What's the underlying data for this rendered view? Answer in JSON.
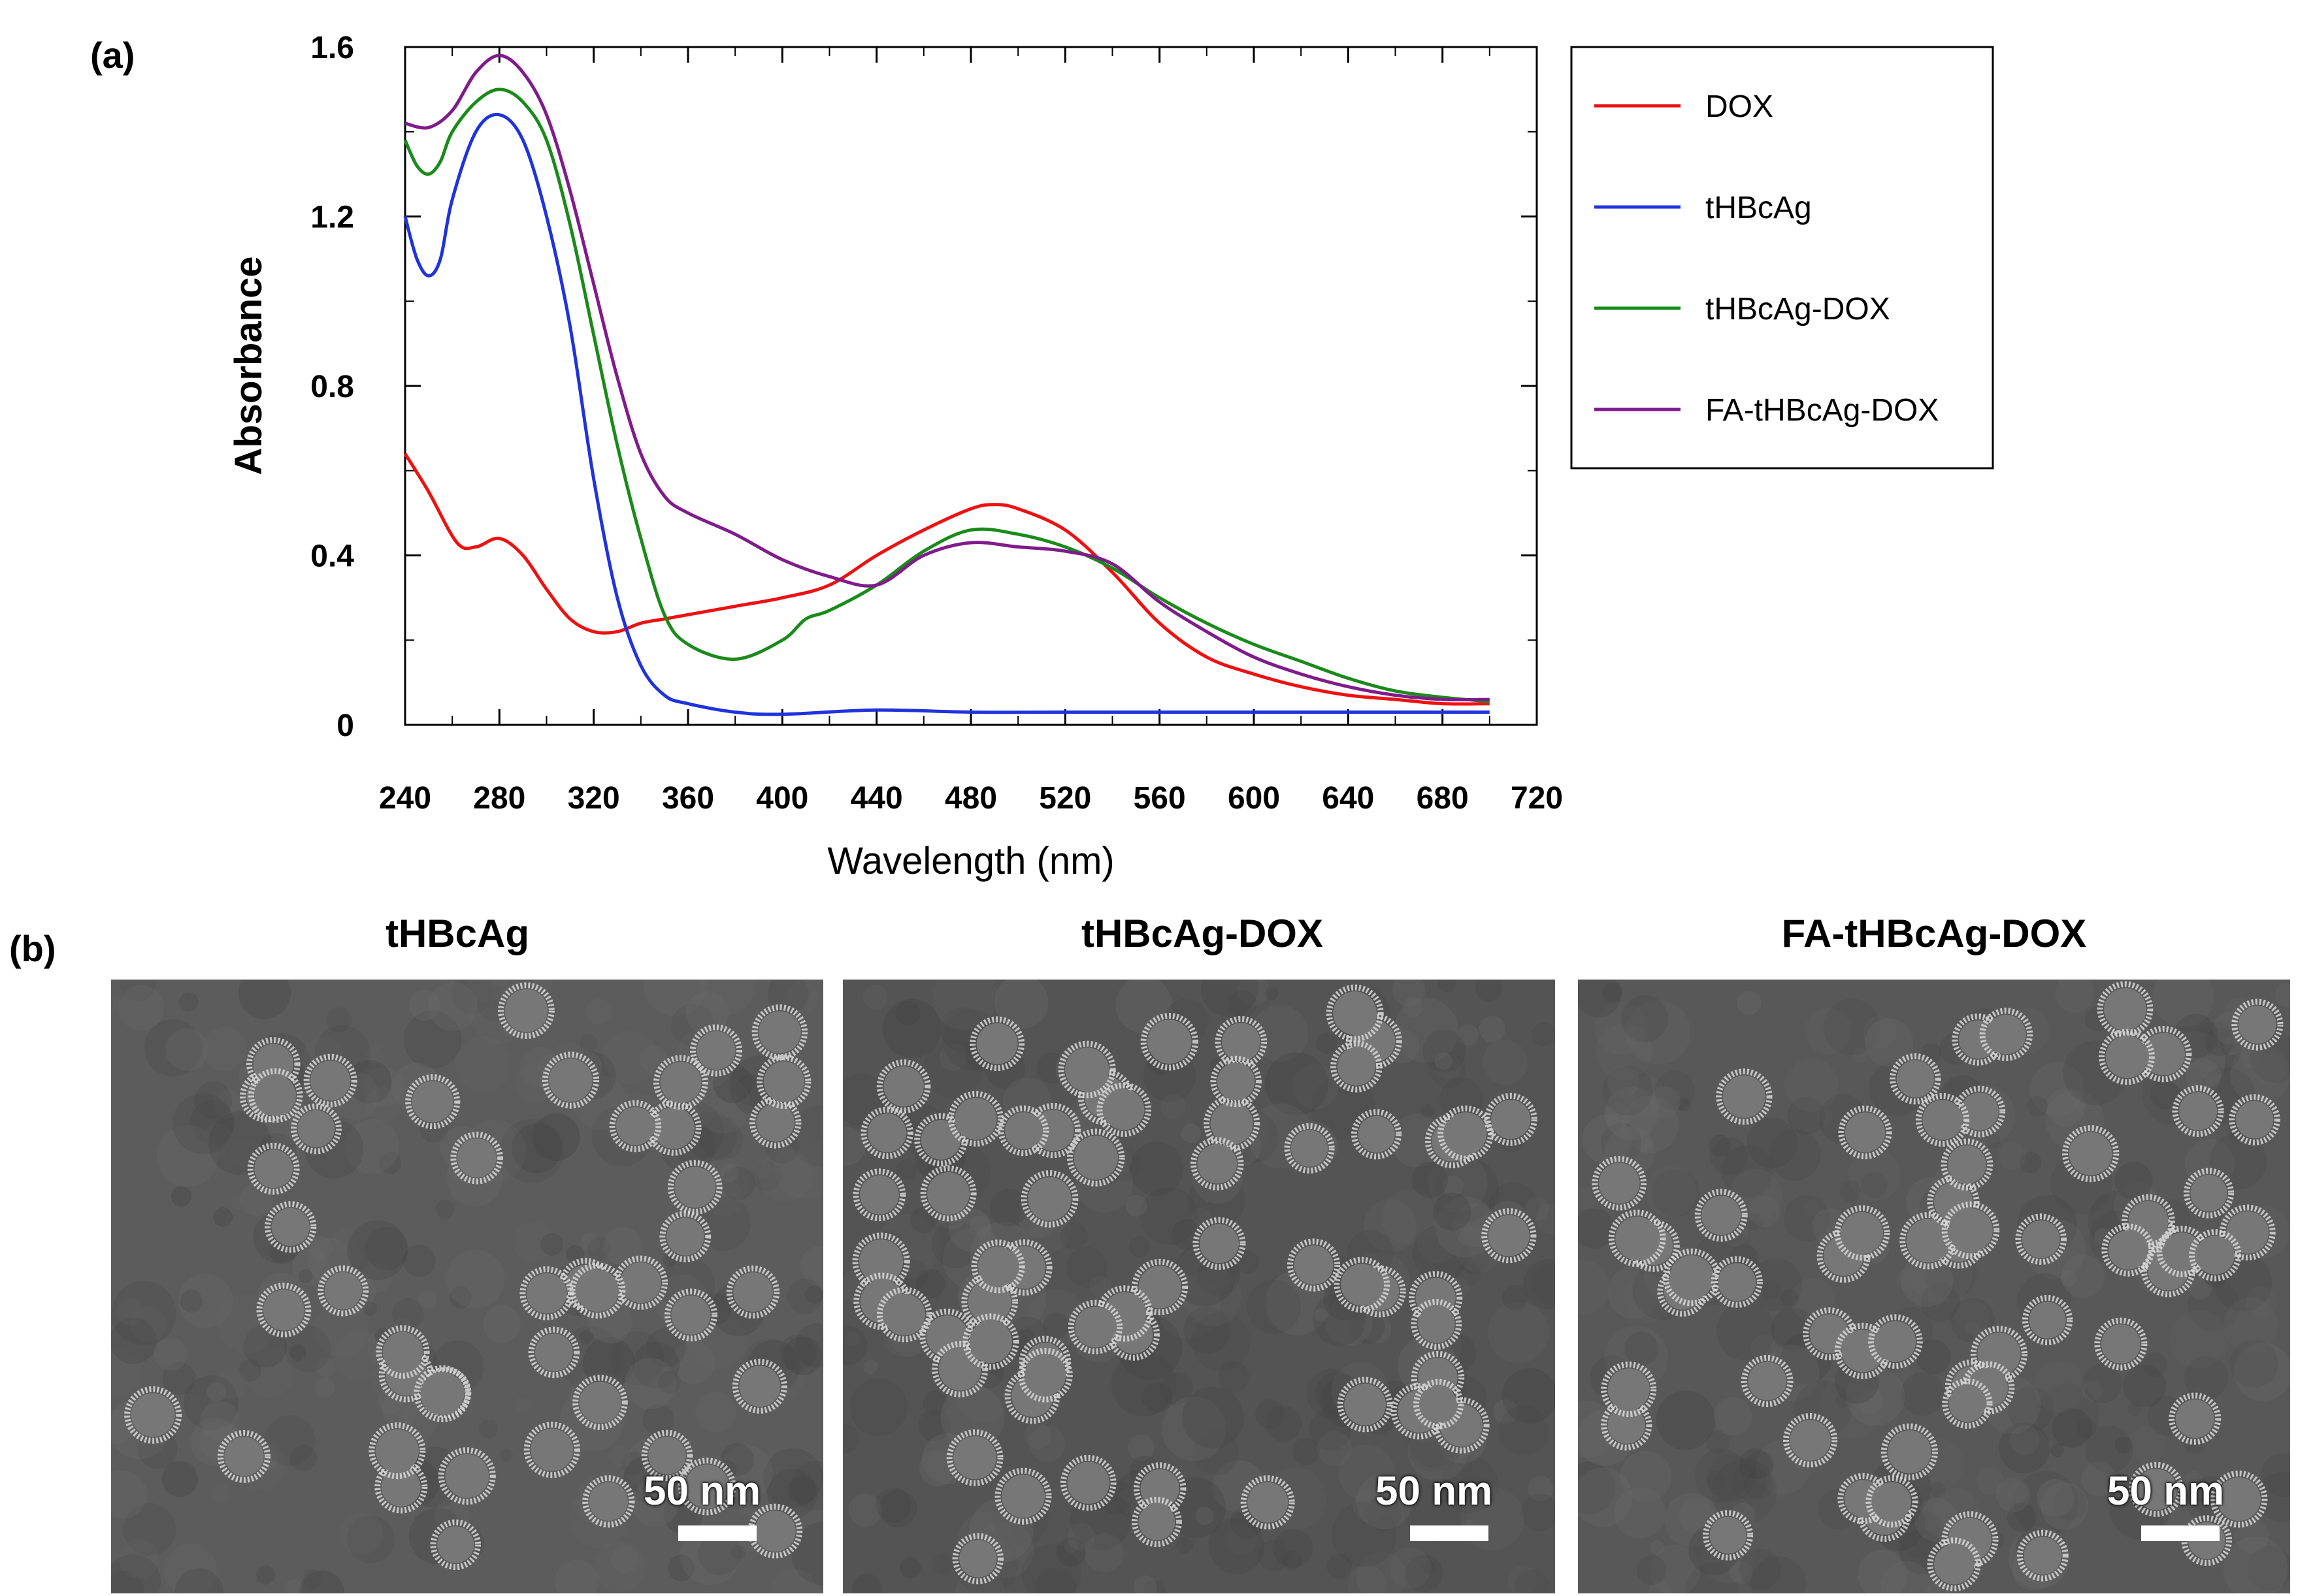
{
  "panel_a_label": "(a)",
  "panel_b_label": "(b)",
  "chart_data": {
    "type": "line",
    "xlabel": "Wavelength (nm)",
    "ylabel": "Absorbance",
    "xlim": [
      240,
      720
    ],
    "ylim": [
      0,
      1.6
    ],
    "xticks": [
      240,
      280,
      320,
      360,
      400,
      440,
      480,
      520,
      560,
      600,
      640,
      680,
      720
    ],
    "yticks": [
      0,
      0.4,
      0.8,
      1.2,
      1.6
    ],
    "ytick_labels": [
      "0",
      "0.4",
      "0.8",
      "1.2",
      "1.6"
    ],
    "legend_position": "outside-right",
    "series": [
      {
        "name": "DOX",
        "color": "#ee1111",
        "x": [
          240,
          250,
          262,
          270,
          280,
          290,
          300,
          310,
          320,
          330,
          340,
          350,
          360,
          380,
          400,
          420,
          440,
          460,
          480,
          490,
          500,
          520,
          540,
          560,
          580,
          600,
          620,
          640,
          660,
          680,
          700
        ],
        "y": [
          0.64,
          0.55,
          0.43,
          0.42,
          0.44,
          0.4,
          0.32,
          0.25,
          0.22,
          0.22,
          0.24,
          0.25,
          0.26,
          0.28,
          0.3,
          0.33,
          0.4,
          0.46,
          0.51,
          0.52,
          0.51,
          0.46,
          0.36,
          0.24,
          0.16,
          0.12,
          0.09,
          0.07,
          0.06,
          0.05,
          0.05
        ]
      },
      {
        "name": "tHBcAg",
        "color": "#1f33dd",
        "x": [
          240,
          245,
          250,
          255,
          260,
          270,
          280,
          290,
          300,
          310,
          320,
          330,
          340,
          350,
          360,
          380,
          400,
          440,
          480,
          520,
          560,
          600,
          640,
          700
        ],
        "y": [
          1.2,
          1.1,
          1.06,
          1.1,
          1.24,
          1.4,
          1.44,
          1.38,
          1.2,
          0.94,
          0.58,
          0.3,
          0.14,
          0.07,
          0.05,
          0.03,
          0.025,
          0.035,
          0.03,
          0.03,
          0.03,
          0.03,
          0.03,
          0.03
        ]
      },
      {
        "name": "tHBcAg-DOX",
        "color": "#1a8a1a",
        "x": [
          240,
          245,
          250,
          255,
          260,
          270,
          280,
          290,
          300,
          310,
          320,
          330,
          340,
          350,
          360,
          380,
          400,
          410,
          420,
          440,
          460,
          480,
          500,
          520,
          540,
          560,
          580,
          600,
          620,
          640,
          660,
          680,
          700
        ],
        "y": [
          1.38,
          1.32,
          1.3,
          1.33,
          1.4,
          1.47,
          1.5,
          1.47,
          1.38,
          1.18,
          0.92,
          0.66,
          0.44,
          0.26,
          0.19,
          0.155,
          0.2,
          0.25,
          0.27,
          0.33,
          0.41,
          0.46,
          0.45,
          0.42,
          0.37,
          0.3,
          0.24,
          0.19,
          0.15,
          0.11,
          0.08,
          0.065,
          0.055
        ]
      },
      {
        "name": "FA-tHBcAg-DOX",
        "color": "#801b8c",
        "x": [
          240,
          250,
          260,
          270,
          280,
          290,
          300,
          310,
          320,
          330,
          340,
          350,
          360,
          380,
          400,
          420,
          440,
          460,
          480,
          500,
          520,
          540,
          560,
          580,
          600,
          620,
          640,
          660,
          680,
          700
        ],
        "y": [
          1.42,
          1.41,
          1.45,
          1.54,
          1.58,
          1.54,
          1.44,
          1.26,
          1.04,
          0.82,
          0.64,
          0.54,
          0.5,
          0.45,
          0.39,
          0.35,
          0.33,
          0.4,
          0.43,
          0.42,
          0.41,
          0.38,
          0.29,
          0.22,
          0.16,
          0.12,
          0.09,
          0.07,
          0.06,
          0.06
        ]
      }
    ]
  },
  "tem": {
    "panels": [
      {
        "title": "tHBcAg",
        "scale_label": "50 nm"
      },
      {
        "title": "tHBcAg-DOX",
        "scale_label": "50 nm"
      },
      {
        "title": "FA-tHBcAg-DOX",
        "scale_label": "50 nm"
      }
    ]
  }
}
